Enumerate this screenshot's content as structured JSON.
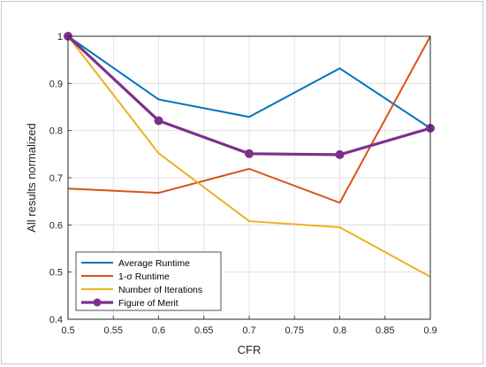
{
  "chart_data": {
    "type": "line",
    "title": "",
    "xlabel": "CFR",
    "ylabel": "All results normalized",
    "xlim": [
      0.5,
      0.9
    ],
    "ylim": [
      0.4,
      1.0
    ],
    "x_ticks": [
      "0.5",
      "0.55",
      "0.6",
      "0.65",
      "0.7",
      "0.75",
      "0.8",
      "0.85",
      "0.9"
    ],
    "y_ticks": [
      "0.4",
      "0.5",
      "0.6",
      "0.7",
      "0.8",
      "0.9",
      "1"
    ],
    "grid": true,
    "legend_position": "bottom-left",
    "x": [
      0.5,
      0.6,
      0.7,
      0.8,
      0.9
    ],
    "series": [
      {
        "name": "Average Runtime",
        "color": "#0072BD",
        "marker": false,
        "values": [
          1.0,
          0.866,
          0.829,
          0.932,
          0.805
        ]
      },
      {
        "name": "1-σ Runtime",
        "color": "#D95319",
        "marker": false,
        "values": [
          0.677,
          0.668,
          0.719,
          0.647,
          1.0
        ]
      },
      {
        "name": "Number of Iterations",
        "color": "#EDB120",
        "marker": false,
        "values": [
          1.0,
          0.752,
          0.608,
          0.595,
          0.49
        ]
      },
      {
        "name": "Figure of Merit",
        "color": "#7E2F8E",
        "marker": true,
        "values": [
          1.0,
          0.821,
          0.751,
          0.749,
          0.805
        ]
      }
    ]
  }
}
